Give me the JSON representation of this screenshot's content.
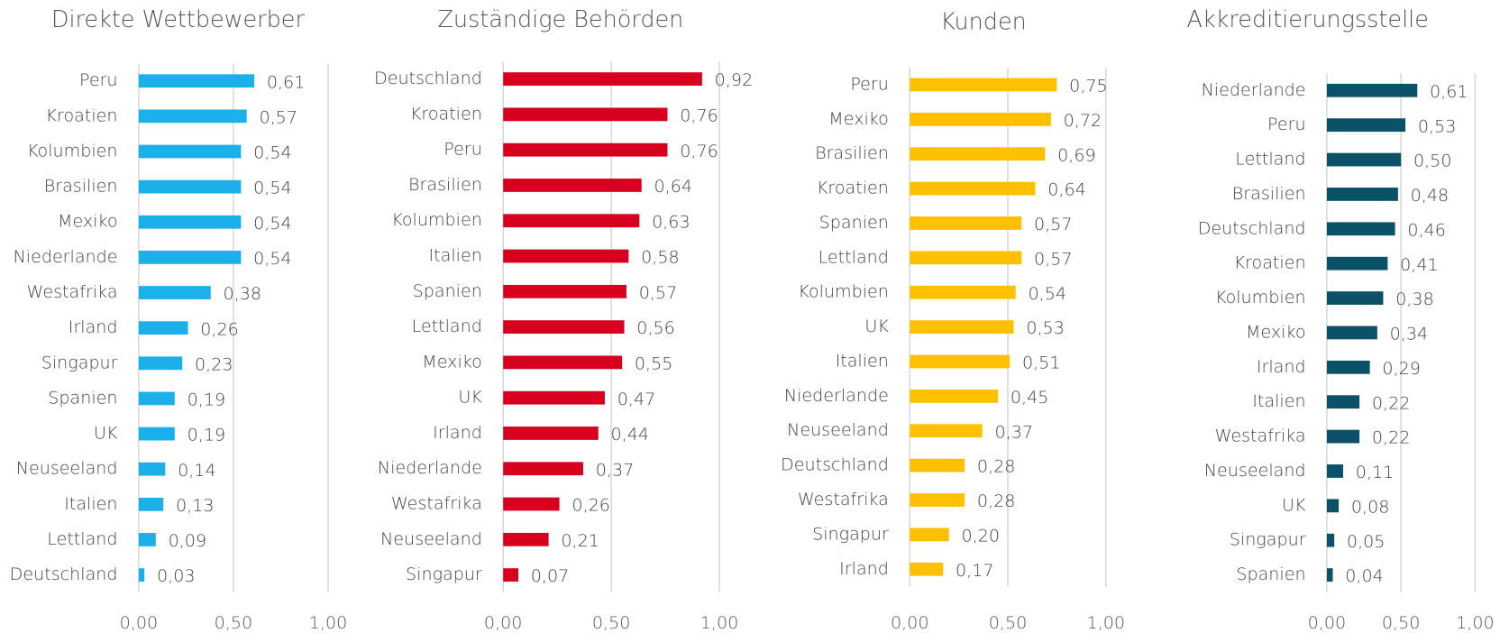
{
  "chart_data": [
    {
      "type": "bar",
      "title": "Direkte Wettbewerber",
      "color": "#1cb0ea",
      "categories": [
        "Peru",
        "Kroatien",
        "Kolumbien",
        "Brasilien",
        "Mexiko",
        "Niederlande",
        "Westafrika",
        "Irland",
        "Singapur",
        "Spanien",
        "UK",
        "Neuseeland",
        "Italien",
        "Lettland",
        "Deutschland"
      ],
      "values": [
        0.61,
        0.57,
        0.54,
        0.54,
        0.54,
        0.54,
        0.38,
        0.26,
        0.23,
        0.19,
        0.19,
        0.14,
        0.13,
        0.09,
        0.03
      ],
      "value_labels": [
        "0,61",
        "0,57",
        "0,54",
        "0,54",
        "0,54",
        "0,54",
        "0,38",
        "0,26",
        "0,23",
        "0,19",
        "0,19",
        "0,14",
        "0,13",
        "0,09",
        "0,03"
      ],
      "xlim": [
        0,
        1
      ],
      "xticks": [
        {
          "value": 0,
          "label": "0,00"
        },
        {
          "value": 0.5,
          "label": "0,50"
        },
        {
          "value": 1,
          "label": "1,00"
        }
      ]
    },
    {
      "type": "bar",
      "title": "Zuständige Behörden",
      "color": "#d7001e",
      "categories": [
        "Deutschland",
        "Kroatien",
        "Peru",
        "Brasilien",
        "Kolumbien",
        "Italien",
        "Spanien",
        "Lettland",
        "Mexiko",
        "UK",
        "Irland",
        "Niederlande",
        "Westafrika",
        "Neuseeland",
        "Singapur"
      ],
      "values": [
        0.92,
        0.76,
        0.76,
        0.64,
        0.63,
        0.58,
        0.57,
        0.56,
        0.55,
        0.47,
        0.44,
        0.37,
        0.26,
        0.21,
        0.07
      ],
      "value_labels": [
        "0,92",
        "0,76",
        "0,76",
        "0,64",
        "0,63",
        "0,58",
        "0,57",
        "0,56",
        "0,55",
        "0,47",
        "0,44",
        "0,37",
        "0,26",
        "0,21",
        "0,07"
      ],
      "xlim": [
        0,
        1
      ],
      "xticks": [
        {
          "value": 0,
          "label": "0,00"
        },
        {
          "value": 0.5,
          "label": "0,50"
        },
        {
          "value": 1,
          "label": "1,00"
        }
      ]
    },
    {
      "type": "bar",
      "title": "Kunden",
      "color": "#ffc000",
      "categories": [
        "Peru",
        "Mexiko",
        "Brasilien",
        "Kroatien",
        "Spanien",
        "Lettland",
        "Kolumbien",
        "UK",
        "Italien",
        "Niederlande",
        "Neuseeland",
        "Deutschland",
        "Westafrika",
        "Singapur",
        "Irland"
      ],
      "values": [
        0.75,
        0.72,
        0.69,
        0.64,
        0.57,
        0.57,
        0.54,
        0.53,
        0.51,
        0.45,
        0.37,
        0.28,
        0.28,
        0.2,
        0.17
      ],
      "value_labels": [
        "0,75",
        "0,72",
        "0,69",
        "0,64",
        "0,57",
        "0,57",
        "0,54",
        "0,53",
        "0,51",
        "0,45",
        "0,37",
        "0,28",
        "0,28",
        "0,20",
        "0,17"
      ],
      "xlim": [
        0,
        1
      ],
      "xticks": [
        {
          "value": 0,
          "label": "0,00"
        },
        {
          "value": 0.5,
          "label": "0,50"
        },
        {
          "value": 1,
          "label": "1,00"
        }
      ]
    },
    {
      "type": "bar",
      "title": "Akkreditierungsstelle",
      "color": "#0b5168",
      "categories": [
        "Niederlande",
        "Peru",
        "Lettland",
        "Brasilien",
        "Deutschland",
        "Kroatien",
        "Kolumbien",
        "Mexiko",
        "Irland",
        "Italien",
        "Westafrika",
        "Neuseeland",
        "UK",
        "Singapur",
        "Spanien"
      ],
      "values": [
        0.61,
        0.53,
        0.5,
        0.48,
        0.46,
        0.41,
        0.38,
        0.34,
        0.29,
        0.22,
        0.22,
        0.11,
        0.08,
        0.05,
        0.04
      ],
      "value_labels": [
        "0,61",
        "0,53",
        "0,50",
        "0,48",
        "0,46",
        "0,41",
        "0,38",
        "0,34",
        "0,29",
        "0,22",
        "0,22",
        "0,11",
        "0,08",
        "0,05",
        "0,04"
      ],
      "xlim": [
        0,
        1
      ],
      "xticks": [
        {
          "value": 0,
          "label": "0,00"
        },
        {
          "value": 0.5,
          "label": "0,50"
        },
        {
          "value": 1,
          "label": "1,00"
        }
      ]
    }
  ]
}
